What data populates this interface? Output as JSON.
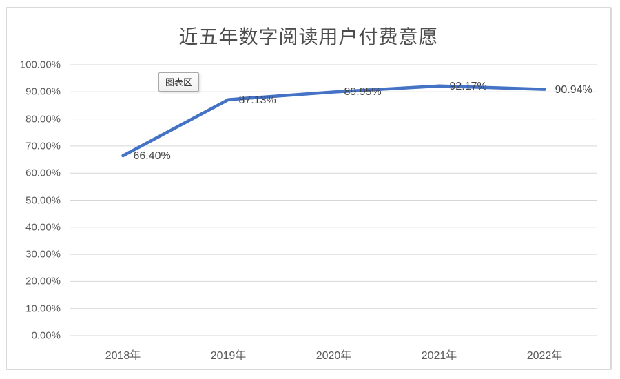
{
  "tooltip": {
    "label": "图表区"
  },
  "colors": {
    "line": "#4472C4",
    "grid": "#d6d6d6",
    "axis_text": "#595959",
    "data_label_text": "#454545",
    "chart_border": "#d9d9d9",
    "background": "#ffffff"
  },
  "chart_data": {
    "type": "line",
    "title": "近五年数字阅读用户付费意愿",
    "categories": [
      "2018年",
      "2019年",
      "2020年",
      "2021年",
      "2022年"
    ],
    "values": [
      66.4,
      87.13,
      89.95,
      92.17,
      90.94
    ],
    "data_labels": [
      "66.40%",
      "87.13%",
      "89.95%",
      "92.17%",
      "90.94%"
    ],
    "xlabel": "",
    "ylabel": "",
    "ylim": [
      0,
      100
    ],
    "y_ticks": [
      {
        "value": 100,
        "label": "100.00%"
      },
      {
        "value": 90,
        "label": "90.00%"
      },
      {
        "value": 80,
        "label": "80.00%"
      },
      {
        "value": 70,
        "label": "70.00%"
      },
      {
        "value": 60,
        "label": "60.00%"
      },
      {
        "value": 50,
        "label": "50.00%"
      },
      {
        "value": 40,
        "label": "40.00%"
      },
      {
        "value": 30,
        "label": "30.00%"
      },
      {
        "value": 20,
        "label": "20.00%"
      },
      {
        "value": 10,
        "label": "10.00%"
      },
      {
        "value": 0,
        "label": "0.00%"
      }
    ],
    "grid": true,
    "legend": false
  }
}
